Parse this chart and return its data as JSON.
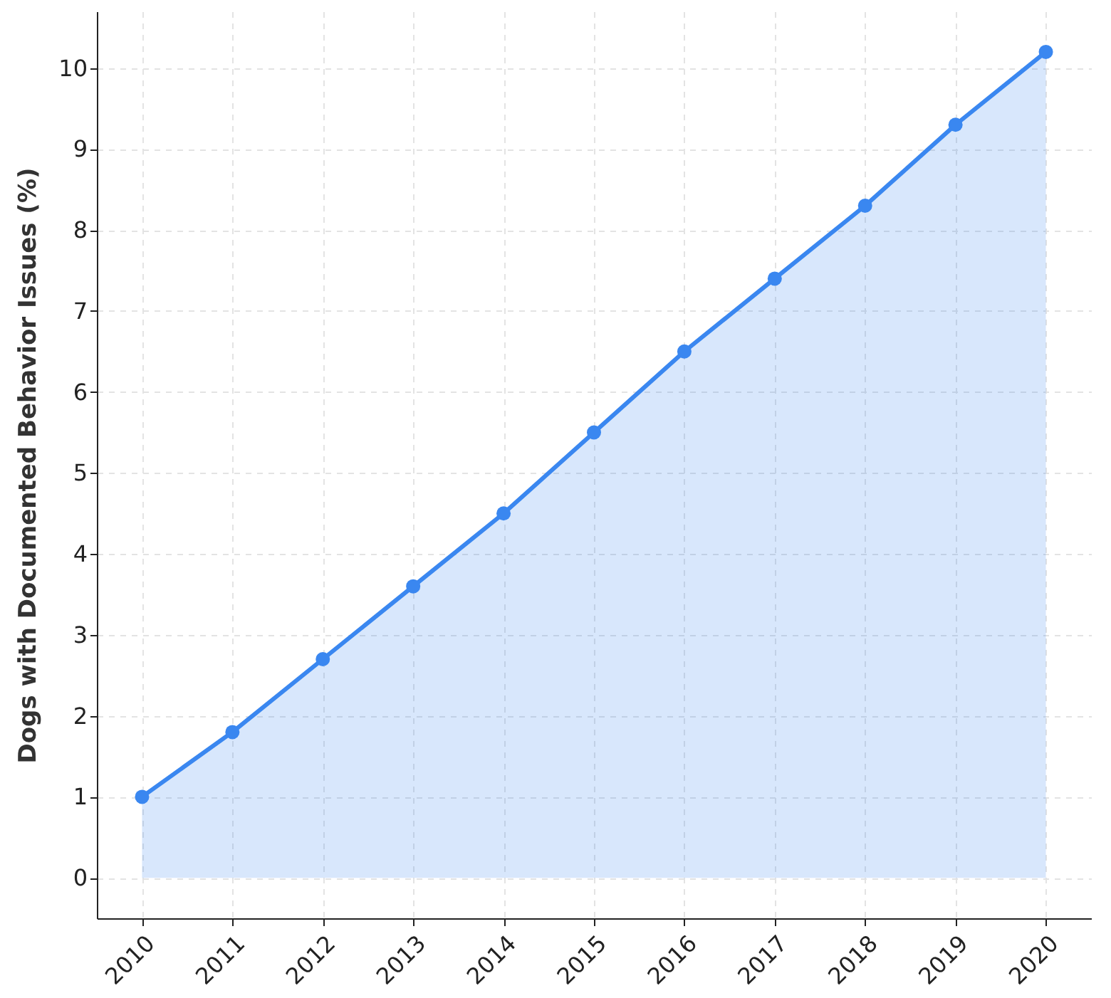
{
  "chart_data": {
    "type": "area",
    "ylabel": "Dogs with Documented Behavior Issues (%)",
    "x": [
      2010,
      2011,
      2012,
      2013,
      2014,
      2015,
      2016,
      2017,
      2018,
      2019,
      2020
    ],
    "series": [
      {
        "color": "#3a87f0",
        "values": [
          1.0,
          1.8,
          2.7,
          3.6,
          4.5,
          5.5,
          6.5,
          7.4,
          8.3,
          9.3,
          10.2
        ]
      }
    ],
    "xlim": [
      2009.5,
      2020.5
    ],
    "xticks": [
      2010,
      2011,
      2012,
      2013,
      2014,
      2015,
      2016,
      2017,
      2018,
      2019,
      2020
    ],
    "ylim": [
      -0.5,
      10.7
    ],
    "yticks": [
      0,
      1,
      2,
      3,
      4,
      5,
      6,
      7,
      8,
      9,
      10
    ],
    "grid": true,
    "marker": "circle",
    "line_style": "solid",
    "legend": false
  }
}
